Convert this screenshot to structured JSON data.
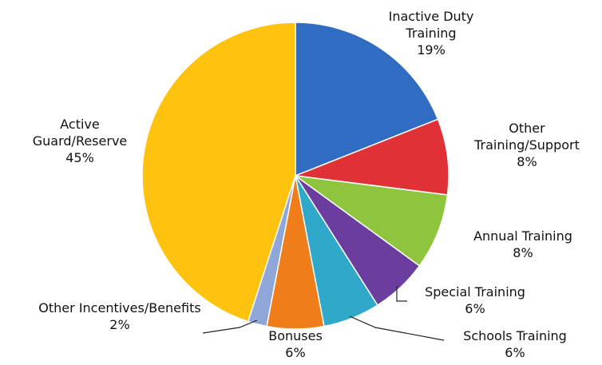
{
  "chart_data": {
    "type": "pie",
    "categories": [
      "Inactive Duty Training",
      "Other Training/Support",
      "Annual Training",
      "Special Training",
      "Schools Training",
      "Bonuses",
      "Other Incentives/Benefits",
      "Active Guard/Reserve"
    ],
    "values": [
      19,
      8,
      8,
      6,
      6,
      6,
      2,
      45
    ],
    "value_labels": [
      "19%",
      "8%",
      "8%",
      "6%",
      "6%",
      "6%",
      "2%",
      "45%"
    ],
    "colors": [
      "#2f6cc2",
      "#df3136",
      "#8fc43e",
      "#6b3d9e",
      "#2fa8c9",
      "#ee7d1a",
      "#8ea6d8",
      "#ffc20e"
    ]
  }
}
